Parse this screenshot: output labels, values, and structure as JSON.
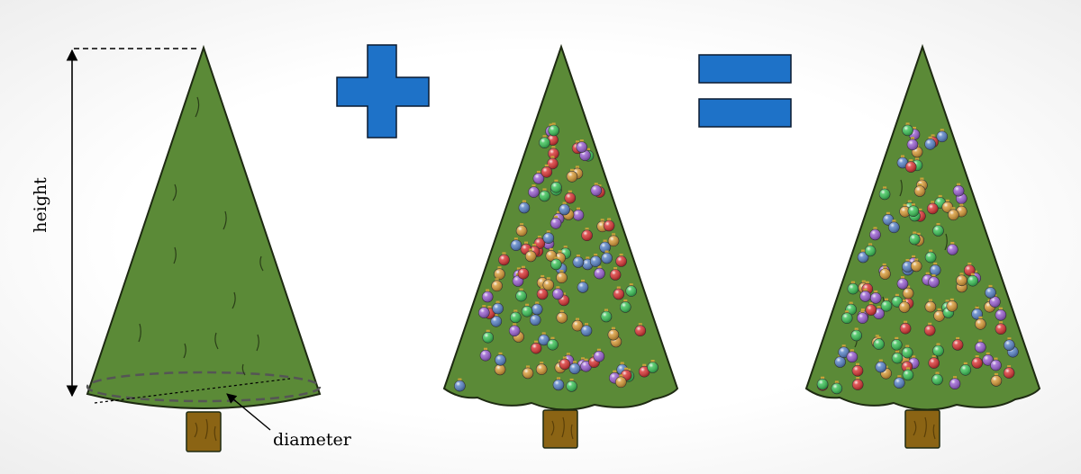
{
  "labels": {
    "height": "height",
    "diameter": "diameter"
  },
  "colors": {
    "tree_fill": "#5b8a37",
    "tree_stroke": "#1e2a12",
    "trunk_fill": "#8b6414",
    "symbol_fill": "#1e72c8",
    "symbol_stroke": "#0a1a30",
    "ornaments": [
      "#d83838",
      "#3ec25a",
      "#9a62d0",
      "#5b84c6",
      "#d69a3a"
    ]
  },
  "symbols": [
    "plus-sign",
    "equals-sign"
  ],
  "trees": [
    "plain-cone-tree",
    "ornaments-only-tree",
    "decorated-tree"
  ]
}
